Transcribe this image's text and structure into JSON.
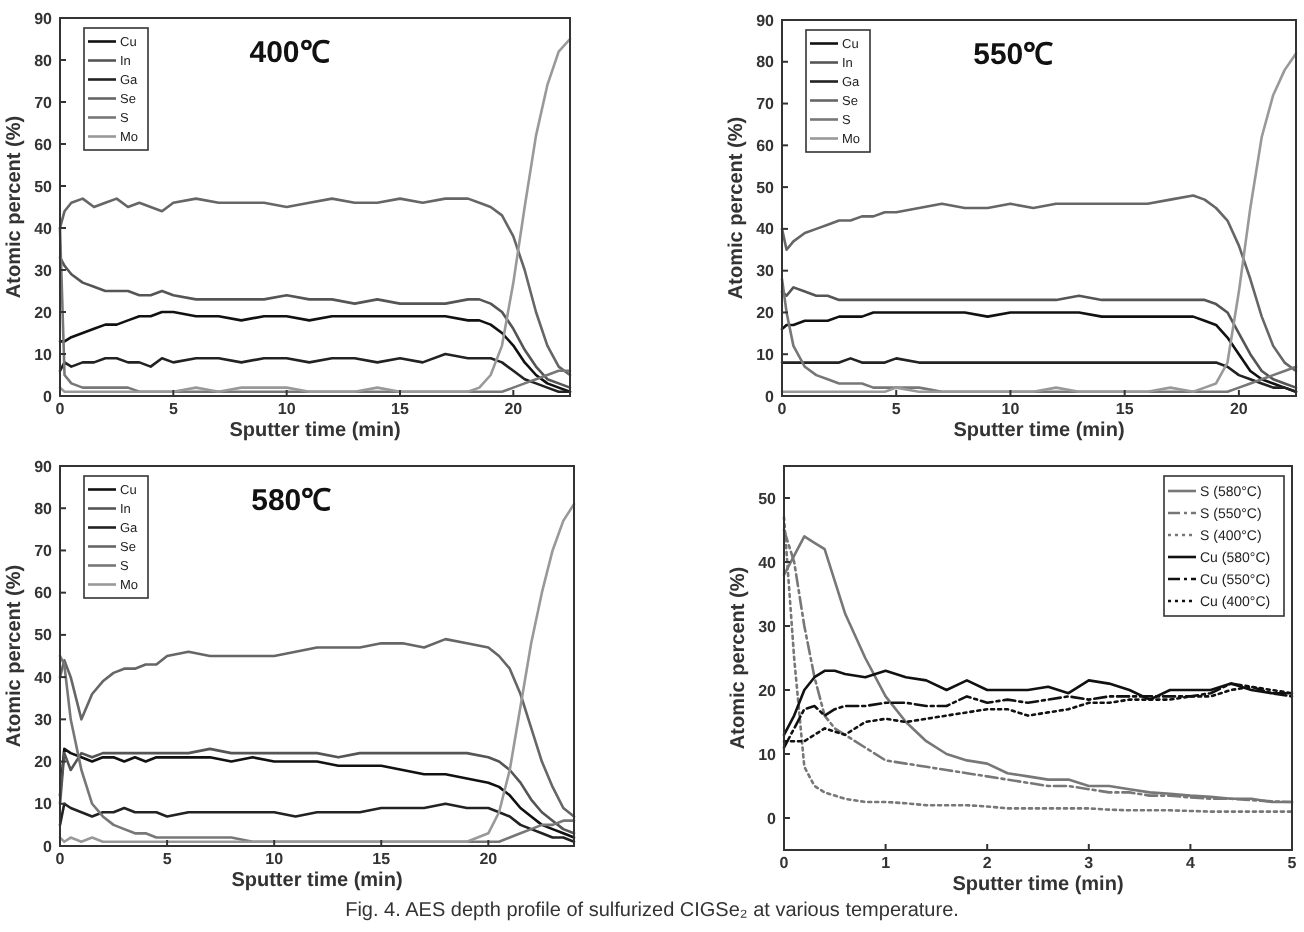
{
  "chart_data": [
    {
      "type": "line",
      "title": "400℃",
      "xlabel": "Sputter time (min)",
      "ylabel": "Atomic percent (%)",
      "xlim": [
        0,
        22.5
      ],
      "xticks": [
        0,
        5,
        10,
        15,
        20
      ],
      "ylim": [
        0,
        90
      ],
      "yticks": [
        0,
        10,
        20,
        30,
        40,
        50,
        60,
        70,
        80,
        90
      ],
      "legend": "top left",
      "grid": false,
      "x": [
        0,
        0.2,
        0.5,
        1,
        1.5,
        2,
        2.5,
        3,
        3.5,
        4,
        4.5,
        5,
        6,
        7,
        8,
        9,
        10,
        11,
        12,
        13,
        14,
        15,
        16,
        17,
        18,
        18.5,
        19,
        19.5,
        20,
        20.5,
        21,
        21.5,
        22,
        22.5
      ],
      "series": [
        {
          "name": "Cu",
          "color": "#111111",
          "values": [
            13,
            13,
            14,
            15,
            16,
            17,
            17,
            18,
            19,
            19,
            20,
            20,
            19,
            19,
            18,
            19,
            19,
            18,
            19,
            19,
            19,
            19,
            19,
            19,
            18,
            18,
            17,
            15,
            12,
            8,
            5,
            3,
            2,
            1
          ]
        },
        {
          "name": "In",
          "color": "#555555",
          "values": [
            33,
            31,
            29,
            27,
            26,
            25,
            25,
            25,
            24,
            24,
            25,
            24,
            23,
            23,
            23,
            23,
            24,
            23,
            23,
            22,
            23,
            22,
            22,
            22,
            23,
            23,
            22,
            20,
            16,
            11,
            7,
            4,
            3,
            2
          ]
        },
        {
          "name": "Ga",
          "color": "#222222",
          "values": [
            6,
            8,
            7,
            8,
            8,
            9,
            9,
            8,
            8,
            7,
            9,
            8,
            9,
            9,
            8,
            9,
            9,
            8,
            9,
            9,
            8,
            9,
            8,
            10,
            9,
            9,
            9,
            8,
            6,
            4,
            3,
            2,
            1,
            1
          ]
        },
        {
          "name": "Se",
          "color": "#666666",
          "values": [
            40,
            44,
            46,
            47,
            45,
            46,
            47,
            45,
            46,
            45,
            44,
            46,
            47,
            46,
            46,
            46,
            45,
            46,
            47,
            46,
            46,
            47,
            46,
            47,
            47,
            46,
            45,
            43,
            38,
            30,
            20,
            12,
            7,
            5
          ]
        },
        {
          "name": "S",
          "color": "#777777",
          "values": [
            40,
            5,
            3,
            2,
            2,
            2,
            2,
            2,
            1,
            1,
            1,
            1,
            1,
            1,
            1,
            1,
            1,
            1,
            1,
            1,
            1,
            1,
            1,
            1,
            1,
            1,
            1,
            1,
            2,
            3,
            4,
            5,
            6,
            6
          ]
        },
        {
          "name": "Mo",
          "color": "#999999",
          "values": [
            2,
            1,
            1,
            1,
            1,
            1,
            1,
            1,
            1,
            1,
            1,
            1,
            2,
            1,
            2,
            2,
            2,
            1,
            1,
            1,
            2,
            1,
            1,
            1,
            1,
            2,
            5,
            12,
            27,
            45,
            62,
            74,
            82,
            85
          ]
        }
      ]
    },
    {
      "type": "line",
      "title": "550℃",
      "xlabel": "Sputter time (min)",
      "ylabel": "Atomic percent (%)",
      "xlim": [
        0,
        22.5
      ],
      "xticks": [
        0,
        5,
        10,
        15,
        20
      ],
      "ylim": [
        0,
        90
      ],
      "yticks": [
        0,
        10,
        20,
        30,
        40,
        50,
        60,
        70,
        80,
        90
      ],
      "legend": "top left",
      "grid": false,
      "x": [
        0,
        0.2,
        0.5,
        1,
        1.5,
        2,
        2.5,
        3,
        3.5,
        4,
        4.5,
        5,
        6,
        7,
        8,
        9,
        10,
        11,
        12,
        13,
        14,
        15,
        16,
        17,
        18,
        18.5,
        19,
        19.5,
        20,
        20.5,
        21,
        21.5,
        22,
        22.5
      ],
      "series": [
        {
          "name": "Cu",
          "color": "#111111",
          "values": [
            16,
            17,
            17,
            18,
            18,
            18,
            19,
            19,
            19,
            20,
            20,
            20,
            20,
            20,
            20,
            19,
            20,
            20,
            20,
            20,
            19,
            19,
            19,
            19,
            19,
            18,
            17,
            14,
            10,
            6,
            4,
            3,
            2,
            1
          ]
        },
        {
          "name": "In",
          "color": "#555555",
          "values": [
            25,
            24,
            26,
            25,
            24,
            24,
            23,
            23,
            23,
            23,
            23,
            23,
            23,
            23,
            23,
            23,
            23,
            23,
            23,
            24,
            23,
            23,
            23,
            23,
            23,
            23,
            22,
            20,
            15,
            10,
            6,
            4,
            3,
            2
          ]
        },
        {
          "name": "Ga",
          "color": "#222222",
          "values": [
            8,
            8,
            8,
            8,
            8,
            8,
            8,
            9,
            8,
            8,
            8,
            9,
            8,
            8,
            8,
            8,
            8,
            8,
            8,
            8,
            8,
            8,
            8,
            8,
            8,
            8,
            8,
            7,
            5,
            4,
            3,
            2,
            2,
            1
          ]
        },
        {
          "name": "Se",
          "color": "#666666",
          "values": [
            40,
            35,
            37,
            39,
            40,
            41,
            42,
            42,
            43,
            43,
            44,
            44,
            45,
            46,
            45,
            45,
            46,
            45,
            46,
            46,
            46,
            46,
            46,
            47,
            48,
            47,
            45,
            42,
            36,
            28,
            19,
            12,
            8,
            6
          ]
        },
        {
          "name": "S",
          "color": "#777777",
          "values": [
            28,
            20,
            12,
            7,
            5,
            4,
            3,
            3,
            3,
            2,
            2,
            2,
            2,
            1,
            1,
            1,
            1,
            1,
            1,
            1,
            1,
            1,
            1,
            1,
            1,
            1,
            1,
            1,
            2,
            3,
            4,
            5,
            6,
            7
          ]
        },
        {
          "name": "Mo",
          "color": "#999999",
          "values": [
            1,
            1,
            1,
            1,
            1,
            1,
            1,
            1,
            1,
            1,
            1,
            2,
            1,
            1,
            1,
            1,
            1,
            1,
            2,
            1,
            1,
            1,
            1,
            2,
            1,
            2,
            3,
            8,
            25,
            45,
            62,
            72,
            78,
            82
          ]
        }
      ]
    },
    {
      "type": "line",
      "title": "580℃",
      "xlabel": "Sputter time (min)",
      "ylabel": "Atomic percent (%)",
      "xlim": [
        0,
        24
      ],
      "xticks": [
        0,
        5,
        10,
        15,
        20
      ],
      "ylim": [
        0,
        90
      ],
      "yticks": [
        0,
        10,
        20,
        30,
        40,
        50,
        60,
        70,
        80,
        90
      ],
      "legend": "top left",
      "grid": false,
      "x": [
        0,
        0.2,
        0.5,
        1,
        1.5,
        2,
        2.5,
        3,
        3.5,
        4,
        4.5,
        5,
        6,
        7,
        8,
        9,
        10,
        11,
        12,
        13,
        14,
        15,
        16,
        17,
        18,
        19,
        20,
        20.5,
        21,
        21.5,
        22,
        22.5,
        23,
        23.5,
        24
      ],
      "series": [
        {
          "name": "Cu",
          "color": "#111111",
          "values": [
            12,
            23,
            22,
            21,
            20,
            21,
            21,
            20,
            21,
            20,
            21,
            21,
            21,
            21,
            20,
            21,
            20,
            20,
            20,
            19,
            19,
            19,
            18,
            17,
            17,
            16,
            15,
            14,
            12,
            9,
            7,
            5,
            4,
            3,
            2
          ]
        },
        {
          "name": "In",
          "color": "#555555",
          "values": [
            10,
            22,
            18,
            22,
            21,
            22,
            22,
            22,
            22,
            22,
            22,
            22,
            22,
            23,
            22,
            22,
            22,
            22,
            22,
            21,
            22,
            22,
            22,
            22,
            22,
            22,
            21,
            20,
            18,
            15,
            11,
            8,
            6,
            4,
            3
          ]
        },
        {
          "name": "Ga",
          "color": "#222222",
          "values": [
            5,
            10,
            9,
            8,
            7,
            8,
            8,
            9,
            8,
            8,
            8,
            7,
            8,
            8,
            8,
            8,
            8,
            7,
            8,
            8,
            8,
            9,
            9,
            9,
            10,
            9,
            9,
            8,
            7,
            5,
            4,
            3,
            2,
            2,
            1
          ]
        },
        {
          "name": "Se",
          "color": "#666666",
          "values": [
            40,
            44,
            40,
            30,
            36,
            39,
            41,
            42,
            42,
            43,
            43,
            45,
            46,
            45,
            45,
            45,
            45,
            46,
            47,
            47,
            47,
            48,
            48,
            47,
            49,
            48,
            47,
            45,
            42,
            36,
            28,
            20,
            14,
            9,
            7
          ]
        },
        {
          "name": "S",
          "color": "#777777",
          "values": [
            45,
            43,
            30,
            18,
            10,
            7,
            5,
            4,
            3,
            3,
            2,
            2,
            2,
            2,
            2,
            1,
            1,
            1,
            1,
            1,
            1,
            1,
            1,
            1,
            1,
            1,
            1,
            1,
            2,
            3,
            4,
            5,
            5,
            6,
            6
          ]
        },
        {
          "name": "Mo",
          "color": "#999999",
          "values": [
            2,
            1,
            2,
            1,
            2,
            1,
            1,
            1,
            1,
            1,
            1,
            1,
            1,
            1,
            1,
            1,
            1,
            1,
            1,
            1,
            1,
            1,
            1,
            1,
            1,
            1,
            3,
            8,
            18,
            33,
            48,
            60,
            70,
            77,
            81
          ]
        }
      ]
    },
    {
      "type": "line",
      "xlabel": "Sputter time (min)",
      "ylabel": "Atomic percent (%)",
      "xlim": [
        0,
        5
      ],
      "xticks": [
        0,
        1,
        2,
        3,
        4,
        5
      ],
      "ylim": [
        -5,
        55
      ],
      "yticks": [
        0,
        10,
        20,
        30,
        40,
        50
      ],
      "legend": "top right",
      "grid": false,
      "x": [
        0,
        0.1,
        0.2,
        0.3,
        0.4,
        0.5,
        0.6,
        0.8,
        1,
        1.2,
        1.4,
        1.6,
        1.8,
        2,
        2.2,
        2.4,
        2.6,
        2.8,
        3,
        3.2,
        3.4,
        3.6,
        3.8,
        4,
        4.2,
        4.4,
        4.6,
        4.8,
        5
      ],
      "series": [
        {
          "name": "S (580°C)",
          "color": "#777777",
          "line_style": "solid",
          "values": [
            38,
            41,
            44,
            43,
            42,
            37,
            32,
            25,
            19,
            15,
            12,
            10,
            9,
            8.5,
            7,
            6.5,
            6,
            6,
            5,
            5,
            4.5,
            4,
            3.8,
            3.5,
            3.3,
            3,
            3,
            2.5,
            2.5
          ]
        },
        {
          "name": "S (550°C)",
          "color": "#777777",
          "line_style": "dashdot",
          "values": [
            45,
            40,
            30,
            22,
            16,
            14,
            13,
            11,
            9,
            8.5,
            8,
            7.5,
            7,
            6.5,
            6,
            5.5,
            5,
            5,
            4.5,
            4,
            4,
            3.5,
            3.5,
            3.2,
            3,
            3,
            2.8,
            2.6,
            2.5
          ]
        },
        {
          "name": "S (400°C)",
          "color": "#777777",
          "line_style": "dotted",
          "values": [
            47,
            25,
            8,
            5,
            4,
            3.5,
            3,
            2.5,
            2.5,
            2.3,
            2,
            2,
            2,
            1.8,
            1.5,
            1.5,
            1.5,
            1.5,
            1.5,
            1.3,
            1.2,
            1.2,
            1.2,
            1.1,
            1,
            1,
            1,
            1,
            1
          ]
        },
        {
          "name": "Cu (580°C)",
          "color": "#111111",
          "line_style": "solid",
          "values": [
            13,
            16,
            20,
            22,
            23,
            23,
            22.5,
            22,
            23,
            22,
            21.5,
            20,
            21.5,
            20,
            20,
            20,
            20.5,
            19.5,
            21.5,
            21,
            20,
            18.5,
            20,
            20,
            20,
            21,
            20,
            19.5,
            19.5
          ]
        },
        {
          "name": "Cu (550°C)",
          "color": "#111111",
          "line_style": "dashdot",
          "values": [
            11,
            14,
            17,
            17.5,
            16,
            17,
            17.5,
            17.5,
            18,
            18,
            17.5,
            17.5,
            19,
            18,
            18.5,
            18,
            18.5,
            19,
            18.5,
            19,
            19,
            19,
            19,
            19,
            19.5,
            21,
            20.5,
            19.5,
            19
          ]
        },
        {
          "name": "Cu (400°C)",
          "color": "#111111",
          "line_style": "dotted",
          "values": [
            12,
            12,
            12,
            13,
            14,
            13.5,
            13,
            15,
            15.5,
            15,
            15.5,
            16,
            16.5,
            17,
            17,
            16,
            16.5,
            17,
            18,
            18,
            18.5,
            18.5,
            18.5,
            19,
            19,
            20,
            20.5,
            20,
            19.5
          ]
        }
      ],
      "annotations": [
        "Fig. 4. AES depth profile of sulfurized CIGSe₂ at various temperature."
      ]
    }
  ]
}
